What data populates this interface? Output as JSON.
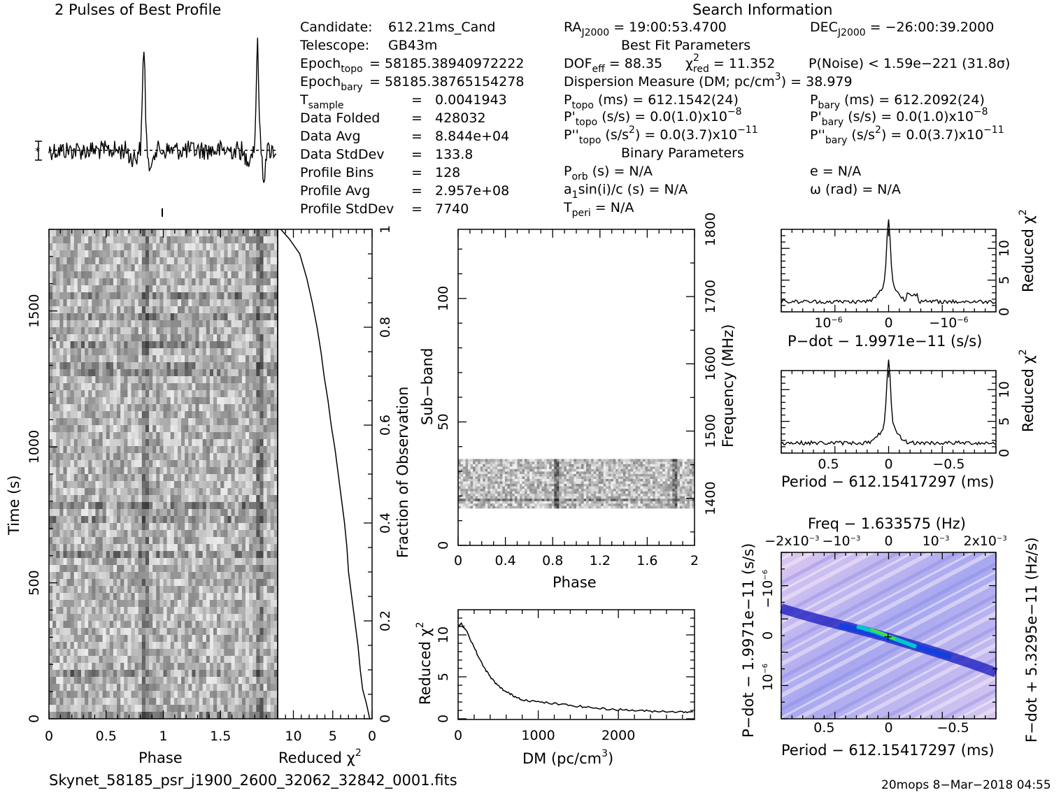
{
  "header": {
    "profile_title": "2 Pulses of Best Profile",
    "search_title": "Search Information"
  },
  "info_left": [
    {
      "label": "Candidate:",
      "value": "612.21ms_Cand"
    },
    {
      "label": "Telescope:",
      "value": "GB43m"
    },
    {
      "label": "Epoch",
      "sub": "topo",
      "value": "= 58185.38940972222"
    },
    {
      "label": "Epoch",
      "sub": "bary",
      "value": "= 58185.38765154278"
    },
    {
      "label": "T",
      "sub": "sample",
      "value": "0.0041943"
    },
    {
      "label": "Data Folded",
      "value": "428032"
    },
    {
      "label": "Data Avg",
      "value": "8.844e+04"
    },
    {
      "label": "Data StdDev",
      "value": "133.8"
    },
    {
      "label": "Profile Bins",
      "value": "128"
    },
    {
      "label": "Profile Avg",
      "value": "2.957e+08"
    },
    {
      "label": "Profile StdDev",
      "value": "7740"
    }
  ],
  "info_right": {
    "ra_label": "RA",
    "ra_sub": "J2000",
    "ra_value": "= 19:00:53.4700",
    "dec_label": "DEC",
    "dec_sub": "J2000",
    "dec_value": "= −26:00:39.2000",
    "best_fit_title": "Best Fit Parameters",
    "dof_label": "DOF",
    "dof_sub": "eff",
    "dof_value": "= 88.35",
    "chi_label": "χ",
    "chi_sup": "2",
    "chi_sub": "red",
    "chi_value": "= 11.352",
    "pnoise": "P(Noise) < 1.59e−221   (31.8σ)",
    "dm_line_a": "Dispersion Measure (DM; pc/cm",
    "dm_line_sup": "3",
    "dm_line_b": ") = 38.979",
    "ptopo_label": "P",
    "ptopo_sub": "topo",
    "ptopo_value": "(ms) =  612.1542(24)",
    "pbary_label": "P",
    "pbary_sub": "bary",
    "pbary_value": "(ms) =  612.2092(24)",
    "pdtopo_label": "P'",
    "pdtopo_sub": "topo",
    "pdtopo_value": "(s/s) = 0.0(1.0)x10",
    "pdtopo_exp": "−8",
    "pdbary_label": "P'",
    "pdbary_sub": "bary",
    "pdbary_value": "(s/s) = 0.0(1.0)x10",
    "pdbary_exp": "−8",
    "pddtopo_label": "P''",
    "pddtopo_sub": "topo",
    "pddtopo_value_a": "(s/s",
    "pddtopo_value_sup": "2",
    "pddtopo_value_b": ") = 0.0(3.7)x10",
    "pddtopo_exp": "−11",
    "pddbary_label": "P''",
    "pddbary_sub": "bary",
    "pddbary_value_a": "(s/s",
    "pddbary_value_sup": "2",
    "pddbary_value_b": ") = 0.0(3.7)x10",
    "pddbary_exp": "−11",
    "binary_title": "Binary Parameters",
    "porb_label": "P",
    "porb_sub": "orb",
    "porb_value": "(s) = N/A",
    "e_value": "e = N/A",
    "a1_value": "a",
    "a1_sub": "1",
    "a1_rest": "sin(i)/c (s) = N/A",
    "omega_value": "ω (rad) = N/A",
    "tperi_label": "T",
    "tperi_sub": "peri",
    "tperi_value": "= N/A"
  },
  "footer": {
    "filename": "Skynet_58185_psr_j1900_2600_32062_32842_0001.fits",
    "stamp": "20mops  8−Mar−2018 04:55"
  },
  "chart_data": [
    {
      "id": "profile",
      "type": "line",
      "title": "2 Pulses of Best Profile",
      "x": [
        0,
        2
      ],
      "note_peaks_phase": [
        0.83,
        1.83
      ]
    },
    {
      "id": "time-phase",
      "type": "heatmap",
      "xlabel": "Phase",
      "ylabel": "Time (s)",
      "xlim": [
        0,
        2
      ],
      "ylim": [
        0,
        1800
      ],
      "xticks": [
        "0",
        "0.5",
        "1",
        "1.5"
      ],
      "yticks": [
        "0",
        "500",
        "1000",
        "1500"
      ]
    },
    {
      "id": "reduced-chi2-time",
      "type": "line",
      "xlabel": "Reduced χ",
      "xlabel_sup": "2",
      "ylabel": "Fraction of Observation",
      "xlim": [
        12,
        0
      ],
      "ylim": [
        0,
        1
      ],
      "xticks": [
        "10",
        "5",
        "0"
      ],
      "yticks": [
        "0",
        "0.2",
        "0.4",
        "0.6",
        "0.8",
        "1"
      ],
      "points": [
        [
          0.3,
          0
        ],
        [
          0.7,
          0.03
        ],
        [
          1.2,
          0.06
        ],
        [
          1.5,
          0.1
        ],
        [
          1.8,
          0.15
        ],
        [
          2.2,
          0.2
        ],
        [
          2.6,
          0.25
        ],
        [
          3.0,
          0.3
        ],
        [
          3.2,
          0.35
        ],
        [
          3.5,
          0.4
        ],
        [
          3.9,
          0.45
        ],
        [
          4.3,
          0.5
        ],
        [
          4.7,
          0.55
        ],
        [
          5.2,
          0.6
        ],
        [
          5.6,
          0.65
        ],
        [
          6.1,
          0.7
        ],
        [
          6.5,
          0.75
        ],
        [
          7.0,
          0.8
        ],
        [
          7.6,
          0.85
        ],
        [
          8.3,
          0.9
        ],
        [
          9.2,
          0.95
        ],
        [
          10.5,
          0.98
        ],
        [
          11.6,
          1.0
        ]
      ]
    },
    {
      "id": "subband-phase",
      "type": "heatmap",
      "xlabel": "Phase",
      "ylabel": "Sub−band",
      "ylabel_right": "Frequency (MHz)",
      "xlim": [
        0,
        2
      ],
      "ylim": [
        0,
        128
      ],
      "xticks": [
        "0",
        "0.4",
        "0.8",
        "1.2",
        "1.6",
        "2"
      ],
      "yticks": [
        "0",
        "50",
        "100"
      ],
      "yticks_right": [
        "1400",
        "1500",
        "1600",
        "1700",
        "1800"
      ],
      "band_rows": [
        15,
        35
      ]
    },
    {
      "id": "dm-chi2",
      "type": "line",
      "xlabel": "DM (pc/cm",
      "xlabel_sup": "3",
      "xlabel_end": ")",
      "ylabel": "Reduced χ",
      "ylabel_sup": "2",
      "xlim": [
        0,
        2950
      ],
      "ylim": [
        0,
        13
      ],
      "xticks": [
        "0",
        "1000",
        "2000"
      ],
      "yticks": [
        "0",
        "5",
        "10"
      ],
      "points": [
        [
          0,
          11
        ],
        [
          40,
          11.3
        ],
        [
          100,
          10.6
        ],
        [
          200,
          8.5
        ],
        [
          300,
          6.5
        ],
        [
          400,
          5
        ],
        [
          500,
          3.9
        ],
        [
          600,
          3.2
        ],
        [
          700,
          2.7
        ],
        [
          800,
          2.3
        ],
        [
          1000,
          2.0
        ],
        [
          1200,
          1.8
        ],
        [
          1400,
          1.6
        ],
        [
          1600,
          1.4
        ],
        [
          1800,
          1.2
        ],
        [
          2000,
          1.1
        ],
        [
          2200,
          1.0
        ],
        [
          2400,
          0.9
        ],
        [
          2600,
          0.9
        ],
        [
          2800,
          0.8
        ],
        [
          2950,
          0.9
        ]
      ]
    },
    {
      "id": "pdot-chi2",
      "type": "line",
      "xlabel": "P−dot − 1.9971e−11 (s/s)",
      "ylabel": "Reduced χ",
      "ylabel_sup": "2",
      "ylim": [
        0,
        13
      ],
      "xticks": [
        "10",
        "0",
        "−10"
      ],
      "xticks_exp": "−6",
      "yticks": [
        "0",
        "5",
        "10"
      ]
    },
    {
      "id": "period-chi2",
      "type": "line",
      "xlabel": "Period − 612.15417297 (ms)",
      "ylabel": "Reduced χ",
      "ylabel_sup": "2",
      "ylim": [
        0,
        13
      ],
      "xticks": [
        "0.5",
        "0",
        "−0.5"
      ],
      "yticks": [
        "0",
        "5",
        "10"
      ]
    },
    {
      "id": "p-pdot-plane",
      "type": "heatmap",
      "title": "Freq − 1.633575 (Hz)",
      "xlabel": "Period − 612.15417297 (ms)",
      "ylabel": "P−dot − 1.9971e−11 (s/s)",
      "ylabel_right": "F−dot + 5.3295e−11 (Hz/s)",
      "xticks": [
        "0.5",
        "0",
        "−0.5"
      ],
      "xticks_top": [
        "−2x10",
        "−10",
        "0",
        "10",
        "2x10"
      ],
      "xticks_top_exp": "−3",
      "yticks": [
        "10",
        "0",
        "−10"
      ],
      "yticks_exp": "−6"
    }
  ]
}
